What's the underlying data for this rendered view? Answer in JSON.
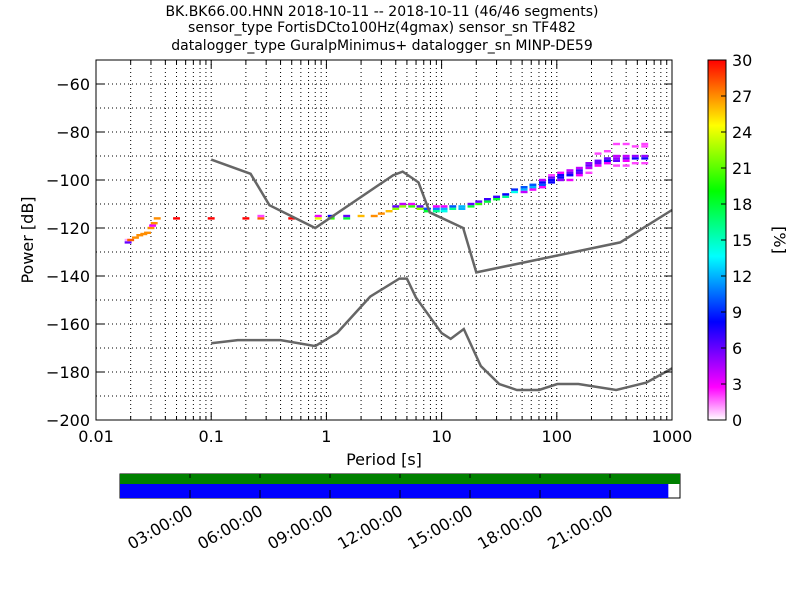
{
  "title": {
    "line1": "BK.BK66.00.HNN   2018-10-11 -- 2018-10-11  (46/46 segments)",
    "line2": "sensor_type FortisDCto100Hz(4gmax) sensor_sn TF482",
    "line3": "datalogger_type GuralpMinimus+ datalogger_sn MINP-DE59"
  },
  "chart_data": [
    {
      "type": "heatmap",
      "subtype": "probabilistic-power-spectral-density",
      "xlabel": "Period [s]",
      "ylabel": "Power [dB]",
      "xscale": "log",
      "xlim": [
        0.01,
        1000
      ],
      "ylim": [
        -200,
        -50
      ],
      "xticks": [
        0.01,
        0.1,
        1,
        10,
        100,
        1000
      ],
      "xtick_labels": [
        "0.01",
        "0.1",
        "1",
        "10",
        "100",
        "1000"
      ],
      "yticks": [
        -200,
        -180,
        -160,
        -140,
        -120,
        -100,
        -80,
        -60
      ],
      "ytick_labels": [
        "−200",
        "−180",
        "−160",
        "−140",
        "−120",
        "−100",
        "−80",
        "−60"
      ],
      "grid": "dotted",
      "colorbar": {
        "label": "[%]",
        "range": [
          0,
          30
        ],
        "ticks": [
          0,
          3,
          6,
          9,
          12,
          15,
          18,
          21,
          24,
          27,
          30
        ],
        "tick_labels": [
          "0",
          "3",
          "6",
          "9",
          "12",
          "15",
          "18",
          "21",
          "24",
          "27",
          "30"
        ],
        "colormap": "pqlx",
        "colors": [
          "#ffffff",
          "#ff00ff",
          "#8000ff",
          "#0000ff",
          "#0080ff",
          "#00ffff",
          "#00ff80",
          "#00ff00",
          "#80ff00",
          "#ffff00",
          "#ff8000",
          "#ff0000"
        ]
      },
      "noise_models": {
        "color": "#666666",
        "NHNM": {
          "period": [
            0.1,
            0.22,
            0.32,
            0.8,
            3.8,
            4.6,
            6.3,
            7.9,
            15.4,
            20,
            354.8,
            1000
          ],
          "power": [
            -91.5,
            -97.4,
            -110.5,
            -120,
            -98,
            -96.5,
            -101,
            -113.5,
            -120,
            -138.5,
            -126,
            -112.5
          ]
        },
        "NLNM": {
          "period": [
            0.1,
            0.17,
            0.4,
            0.8,
            1.24,
            2.4,
            4.3,
            5,
            6,
            10,
            12,
            15.6,
            21.9,
            31.6,
            45,
            70,
            101,
            154,
            328,
            600,
            1000
          ],
          "power": [
            -168,
            -166.7,
            -166.7,
            -169.2,
            -163.7,
            -148.6,
            -141.1,
            -141.1,
            -149,
            -163.8,
            -166.2,
            -162.1,
            -177.5,
            -185,
            -187.5,
            -187.5,
            -185,
            -185,
            -187.5,
            -184.4,
            -178.5
          ]
        }
      },
      "ppsd_cells": [
        {
          "period": 0.019,
          "power": -126,
          "pct": 6
        },
        {
          "period": 0.019,
          "power": -125,
          "pct": 1
        },
        {
          "period": 0.02,
          "power": -125,
          "pct": 28
        },
        {
          "period": 0.022,
          "power": -124,
          "pct": 27
        },
        {
          "period": 0.024,
          "power": -123,
          "pct": 27
        },
        {
          "period": 0.026,
          "power": -122.5,
          "pct": 27
        },
        {
          "period": 0.028,
          "power": -122,
          "pct": 27
        },
        {
          "period": 0.03,
          "power": -120,
          "pct": 27
        },
        {
          "period": 0.031,
          "power": -119,
          "pct": 3
        },
        {
          "period": 0.032,
          "power": -118,
          "pct": 27
        },
        {
          "period": 0.034,
          "power": -116,
          "pct": 27
        },
        {
          "period": 0.05,
          "power": -116,
          "pct": 30
        },
        {
          "period": 0.1,
          "power": -116,
          "pct": 30
        },
        {
          "period": 0.2,
          "power": -116,
          "pct": 30
        },
        {
          "period": 0.27,
          "power": -116,
          "pct": 28
        },
        {
          "period": 0.27,
          "power": -115,
          "pct": 2
        },
        {
          "period": 0.5,
          "power": -116,
          "pct": 30
        },
        {
          "period": 0.85,
          "power": -116,
          "pct": 24
        },
        {
          "period": 0.85,
          "power": -115,
          "pct": 3
        },
        {
          "period": 1.1,
          "power": -116,
          "pct": 20
        },
        {
          "period": 1.1,
          "power": -115,
          "pct": 8
        },
        {
          "period": 1.5,
          "power": -116,
          "pct": 18
        },
        {
          "period": 1.5,
          "power": -115,
          "pct": 6
        },
        {
          "period": 2,
          "power": -115,
          "pct": 26
        },
        {
          "period": 2.6,
          "power": -115,
          "pct": 27
        },
        {
          "period": 3.0,
          "power": -114,
          "pct": 27
        },
        {
          "period": 3.5,
          "power": -113,
          "pct": 26
        },
        {
          "period": 4.0,
          "power": -112,
          "pct": 22
        },
        {
          "period": 4.0,
          "power": -111,
          "pct": 6
        },
        {
          "period": 4.6,
          "power": -111,
          "pct": 22
        },
        {
          "period": 4.6,
          "power": -110,
          "pct": 4
        },
        {
          "period": 5.5,
          "power": -111,
          "pct": 20
        },
        {
          "period": 5.5,
          "power": -110,
          "pct": 3
        },
        {
          "period": 6.5,
          "power": -112,
          "pct": 22
        },
        {
          "period": 6.5,
          "power": -111,
          "pct": 6
        },
        {
          "period": 7.5,
          "power": -113,
          "pct": 18
        },
        {
          "period": 7.5,
          "power": -112,
          "pct": 10
        },
        {
          "period": 9,
          "power": -113,
          "pct": 16
        },
        {
          "period": 9,
          "power": -112,
          "pct": 11
        },
        {
          "period": 9,
          "power": -111,
          "pct": 3
        },
        {
          "period": 10.5,
          "power": -113,
          "pct": 14
        },
        {
          "period": 10.5,
          "power": -112,
          "pct": 12
        },
        {
          "period": 10.5,
          "power": -111,
          "pct": 3
        },
        {
          "period": 12.5,
          "power": -112,
          "pct": 16
        },
        {
          "period": 12.5,
          "power": -111,
          "pct": 10
        },
        {
          "period": 15,
          "power": -112,
          "pct": 12
        },
        {
          "period": 15,
          "power": -111,
          "pct": 12
        },
        {
          "period": 18,
          "power": -111,
          "pct": 18
        },
        {
          "period": 18,
          "power": -110,
          "pct": 6
        },
        {
          "period": 21,
          "power": -110,
          "pct": 20
        },
        {
          "period": 21,
          "power": -109,
          "pct": 6
        },
        {
          "period": 25,
          "power": -109,
          "pct": 18
        },
        {
          "period": 25,
          "power": -108,
          "pct": 7
        },
        {
          "period": 30,
          "power": -108,
          "pct": 18
        },
        {
          "period": 30,
          "power": -107,
          "pct": 7
        },
        {
          "period": 36,
          "power": -107,
          "pct": 16
        },
        {
          "period": 36,
          "power": -106,
          "pct": 8
        },
        {
          "period": 43,
          "power": -105,
          "pct": 14
        },
        {
          "period": 43,
          "power": -104,
          "pct": 9
        },
        {
          "period": 52,
          "power": -104,
          "pct": 12
        },
        {
          "period": 52,
          "power": -103,
          "pct": 10
        },
        {
          "period": 52,
          "power": -105,
          "pct": 4
        },
        {
          "period": 62,
          "power": -103,
          "pct": 12
        },
        {
          "period": 62,
          "power": -102,
          "pct": 10
        },
        {
          "period": 62,
          "power": -104,
          "pct": 3
        },
        {
          "period": 75,
          "power": -102,
          "pct": 10
        },
        {
          "period": 75,
          "power": -101,
          "pct": 8
        },
        {
          "period": 75,
          "power": -100,
          "pct": 4
        },
        {
          "period": 75,
          "power": -103,
          "pct": 3
        },
        {
          "period": 90,
          "power": -101,
          "pct": 8
        },
        {
          "period": 90,
          "power": -100,
          "pct": 8
        },
        {
          "period": 90,
          "power": -99,
          "pct": 6
        },
        {
          "period": 90,
          "power": -98,
          "pct": 2
        },
        {
          "period": 108,
          "power": -99,
          "pct": 8
        },
        {
          "period": 108,
          "power": -98,
          "pct": 8
        },
        {
          "period": 108,
          "power": -100,
          "pct": 5
        },
        {
          "period": 108,
          "power": -97,
          "pct": 3
        },
        {
          "period": 130,
          "power": -98,
          "pct": 8
        },
        {
          "period": 130,
          "power": -97,
          "pct": 6
        },
        {
          "period": 130,
          "power": -96,
          "pct": 4
        },
        {
          "period": 130,
          "power": -100,
          "pct": 3
        },
        {
          "period": 157,
          "power": -97,
          "pct": 6
        },
        {
          "period": 157,
          "power": -96,
          "pct": 7
        },
        {
          "period": 157,
          "power": -95,
          "pct": 4
        },
        {
          "period": 157,
          "power": -98,
          "pct": 3
        },
        {
          "period": 190,
          "power": -94,
          "pct": 6
        },
        {
          "period": 190,
          "power": -93,
          "pct": 5
        },
        {
          "period": 190,
          "power": -95,
          "pct": 4
        },
        {
          "period": 190,
          "power": -97,
          "pct": 2
        },
        {
          "period": 228,
          "power": -93,
          "pct": 6
        },
        {
          "period": 228,
          "power": -92,
          "pct": 6
        },
        {
          "period": 228,
          "power": -94,
          "pct": 3
        },
        {
          "period": 228,
          "power": -89,
          "pct": 2
        },
        {
          "period": 275,
          "power": -92,
          "pct": 8
        },
        {
          "period": 275,
          "power": -91,
          "pct": 6
        },
        {
          "period": 275,
          "power": -93,
          "pct": 3
        },
        {
          "period": 275,
          "power": -88,
          "pct": 2
        },
        {
          "period": 330,
          "power": -92,
          "pct": 6
        },
        {
          "period": 330,
          "power": -91,
          "pct": 5
        },
        {
          "period": 330,
          "power": -90,
          "pct": 4
        },
        {
          "period": 330,
          "power": -94,
          "pct": 2
        },
        {
          "period": 330,
          "power": -85,
          "pct": 2
        },
        {
          "period": 400,
          "power": -91,
          "pct": 6
        },
        {
          "period": 400,
          "power": -90,
          "pct": 4
        },
        {
          "period": 400,
          "power": -92,
          "pct": 3
        },
        {
          "period": 400,
          "power": -94,
          "pct": 2
        },
        {
          "period": 400,
          "power": -85,
          "pct": 2
        },
        {
          "period": 480,
          "power": -91,
          "pct": 8
        },
        {
          "period": 480,
          "power": -90,
          "pct": 5
        },
        {
          "period": 480,
          "power": -86,
          "pct": 2
        },
        {
          "period": 480,
          "power": -93,
          "pct": 2
        },
        {
          "period": 580,
          "power": -91,
          "pct": 8
        },
        {
          "period": 580,
          "power": -90,
          "pct": 5
        },
        {
          "period": 580,
          "power": -85,
          "pct": 2
        },
        {
          "period": 580,
          "power": -86,
          "pct": 2
        },
        {
          "period": 580,
          "power": -93,
          "pct": 2
        }
      ]
    },
    {
      "type": "bar",
      "subtype": "data-availability-timeline",
      "x": "time of day 2018-10-11",
      "xlim_hours": [
        0,
        24
      ],
      "xticks_hours": [
        3,
        6,
        9,
        12,
        15,
        18,
        21
      ],
      "xtick_labels": [
        "03:00:00",
        "06:00:00",
        "09:00:00",
        "12:00:00",
        "15:00:00",
        "18:00:00",
        "21:00:00"
      ],
      "series": [
        {
          "color": "#008000",
          "coverage_hours": [
            [
              0,
              24
            ]
          ]
        },
        {
          "color": "#0000ff",
          "coverage_hours": [
            [
              0,
              23.5
            ]
          ]
        }
      ]
    }
  ]
}
